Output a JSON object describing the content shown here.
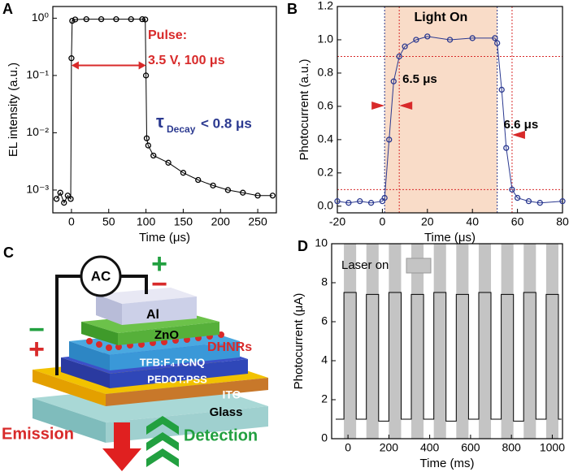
{
  "chart_data": [
    {
      "type": "line",
      "label": "A",
      "xlabel": "Time (μs)",
      "ylabel": "EL intensity (a.u.)",
      "log_y": true,
      "markers": true,
      "xlim": [
        -25,
        275
      ],
      "xticks": [
        0,
        50,
        100,
        150,
        200,
        250
      ],
      "ylim": [
        0.0004,
        1.6
      ],
      "yticks": [
        {
          "value": 0.001,
          "label": "10⁻³"
        },
        {
          "value": 0.01,
          "label": "10⁻²"
        },
        {
          "value": 0.1,
          "label": "10⁻¹"
        },
        {
          "value": 1,
          "label": "10⁰"
        }
      ],
      "series": [
        {
          "color": "#000000",
          "x": [
            -20,
            -15,
            -10,
            -5,
            -1,
            0,
            1,
            5,
            20,
            40,
            60,
            80,
            95,
            99,
            100,
            101,
            103,
            110,
            130,
            150,
            170,
            190,
            210,
            230,
            250,
            270
          ],
          "values": [
            0.0007,
            0.0009,
            0.0006,
            0.0008,
            0.0007,
            0.2,
            0.9,
            0.95,
            0.96,
            0.96,
            0.96,
            0.96,
            0.96,
            0.95,
            0.1,
            0.008,
            0.006,
            0.004,
            0.003,
            0.002,
            0.0015,
            0.0012,
            0.001,
            0.0009,
            0.0008,
            0.0008
          ]
        }
      ],
      "pulse": [
        0,
        100
      ],
      "pulse_y": 0.15,
      "annotations": [
        "Pulse:",
        "3.5 V, 100 μs",
        "τ",
        "Decay",
        "< 0.8 μs"
      ]
    },
    {
      "type": "line",
      "label": "B",
      "xlabel": "Time (μs)",
      "ylabel": "Photocurrent (a.u.)",
      "markers": true,
      "xlim": [
        -20,
        80
      ],
      "xticks": [
        -20,
        0,
        20,
        40,
        60,
        80
      ],
      "ylim": [
        -0.04,
        1.2
      ],
      "yticks": [
        {
          "value": 0,
          "label": "0.0"
        },
        0.2,
        0.4,
        0.6,
        0.8,
        {
          "value": 1,
          "label": "1.0"
        },
        1.2
      ],
      "series": [
        {
          "color": "#2b3990",
          "x": [
            -20,
            -15,
            -10,
            -5,
            0,
            1,
            3,
            5,
            7.5,
            10,
            15,
            20,
            30,
            40,
            50,
            51,
            53,
            55,
            57.6,
            60,
            65,
            70,
            80
          ],
          "values": [
            0.03,
            0.02,
            0.03,
            0.02,
            0.03,
            0.05,
            0.4,
            0.75,
            0.9,
            0.96,
            1.0,
            1.02,
            1.0,
            1.01,
            1.01,
            0.98,
            0.7,
            0.35,
            0.1,
            0.05,
            0.03,
            0.02,
            0.03
          ]
        }
      ],
      "light_on": [
        1,
        51
      ],
      "thresholds": [
        0.1,
        0.9
      ],
      "markers_x": [
        1,
        7.5,
        51,
        57.6
      ],
      "annotations": [
        "Light On",
        "6.5 μs",
        "6.6 μs"
      ]
    },
    {
      "type": "line",
      "label": "D",
      "xlabel": "Time (ms)",
      "ylabel": "Photocurrent (μA)",
      "markers": false,
      "xlim": [
        -80,
        1050
      ],
      "xticks": [
        0,
        200,
        400,
        600,
        800,
        1000
      ],
      "ylim": [
        0,
        10
      ],
      "yticks": [
        0,
        2,
        4,
        6,
        8,
        10
      ],
      "laser_label": "Laser on",
      "laser_on": [
        [
          -20,
          40
        ],
        [
          90,
          150
        ],
        [
          200,
          260
        ],
        [
          310,
          370
        ],
        [
          420,
          480
        ],
        [
          530,
          590
        ],
        [
          640,
          700
        ],
        [
          750,
          810
        ],
        [
          860,
          920
        ],
        [
          970,
          1030
        ]
      ],
      "series": [
        {
          "color": "#000000",
          "x": [
            -60,
            -20,
            -20,
            40,
            40,
            90,
            90,
            150,
            150,
            200,
            200,
            260,
            260,
            310,
            310,
            370,
            370,
            420,
            420,
            480,
            480,
            530,
            530,
            590,
            590,
            640,
            640,
            700,
            700,
            750,
            750,
            810,
            810,
            860,
            860,
            920,
            920,
            970,
            970,
            1030,
            1030,
            1045
          ],
          "values": [
            1.0,
            1.0,
            7.5,
            7.5,
            1.0,
            1.0,
            7.4,
            7.4,
            0.9,
            0.9,
            7.5,
            7.5,
            1.0,
            1.0,
            7.4,
            7.4,
            1.0,
            1.0,
            7.5,
            7.5,
            0.9,
            0.9,
            7.4,
            7.4,
            1.0,
            1.0,
            7.5,
            7.5,
            1.0,
            1.0,
            7.4,
            7.4,
            0.9,
            0.9,
            7.5,
            7.5,
            1.0,
            1.0,
            7.4,
            7.4,
            1.0,
            1.0
          ]
        }
      ]
    }
  ],
  "diagram": {
    "label": "C",
    "source": "AC",
    "top_plus": "+",
    "top_minus": "−",
    "left_minus": "−",
    "left_plus": "+",
    "layers": [
      "Al",
      "ZnO",
      "DHNRs",
      "TFB:F₄TCNQ",
      "PEDOT:PSS",
      "ITO",
      "Glass"
    ],
    "emission": "Emission",
    "detection": "Detection"
  }
}
